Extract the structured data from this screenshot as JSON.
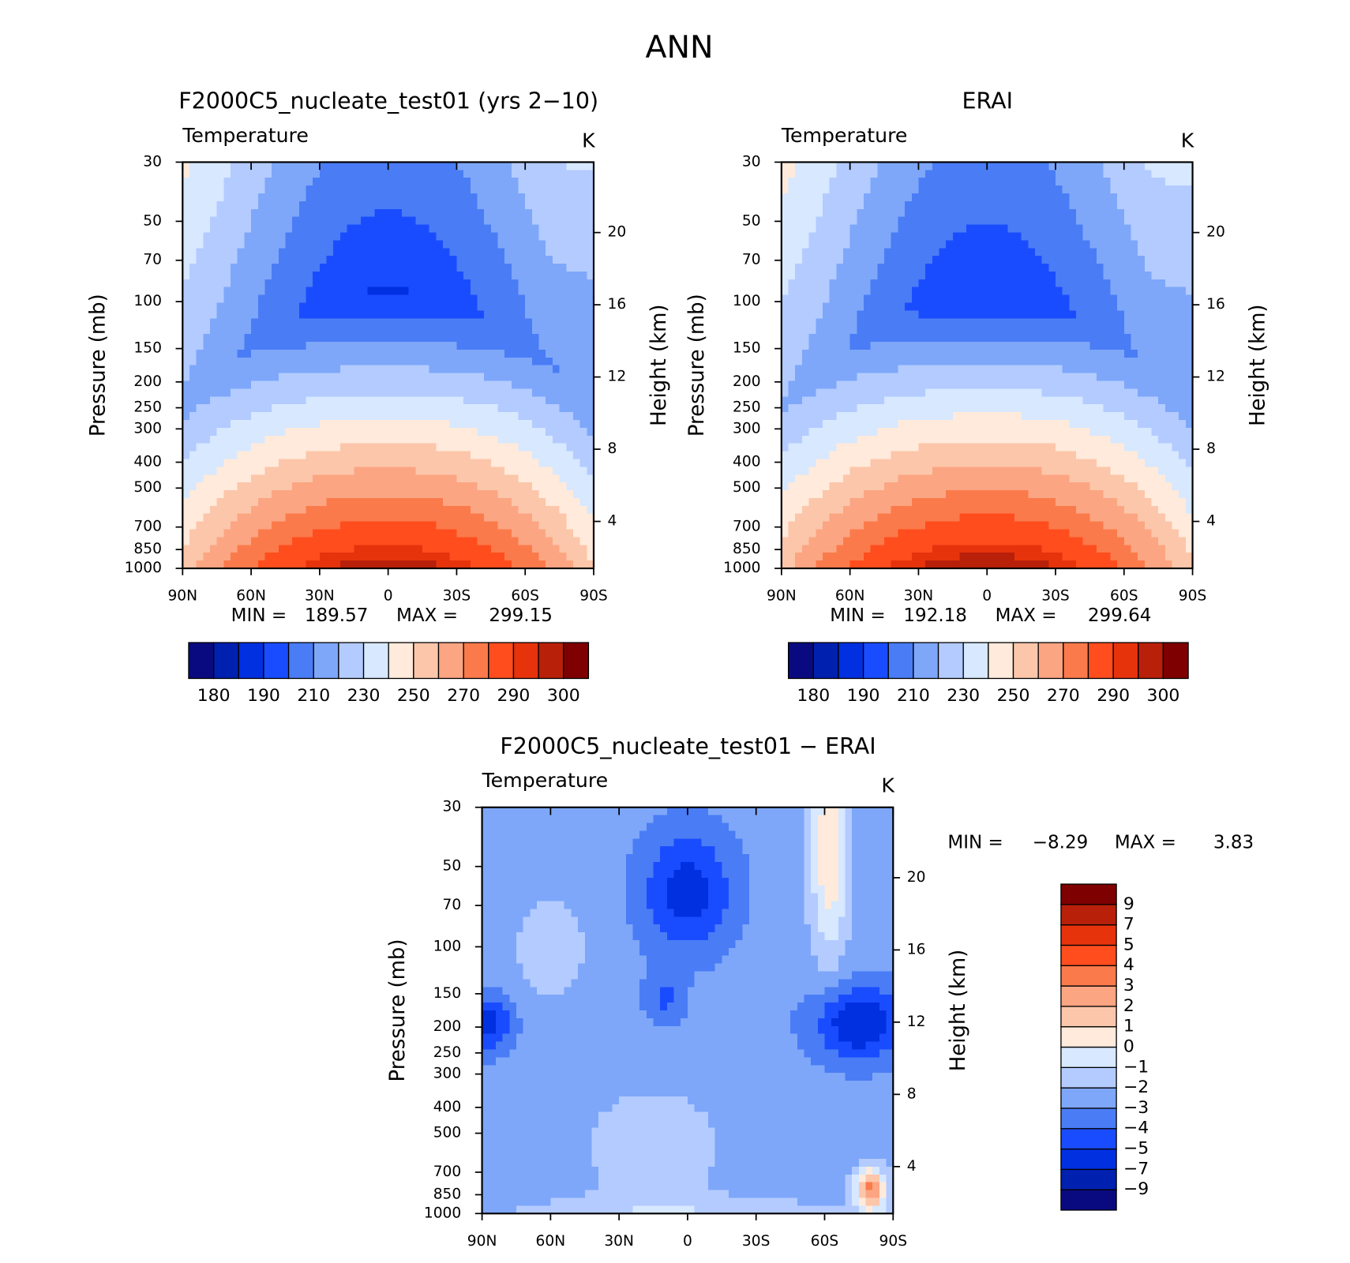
{
  "title": "ANN",
  "chart_data": [
    {
      "type": "contour",
      "title": "F2000C5_nucleate_test01 (yrs 2−10)",
      "variable": "Temperature",
      "units": "K",
      "ylabel": "Pressure (mb)",
      "y2label": "Height (km)",
      "min_label": "MIN =",
      "min": 189.57,
      "max_label": "MAX =",
      "max": 299.15,
      "xlim": [
        90,
        -90
      ],
      "xticks": [
        {
          "value": 90,
          "label": "90N"
        },
        {
          "value": 60,
          "label": "60N"
        },
        {
          "value": 30,
          "label": "30N"
        },
        0,
        {
          "value": -30,
          "label": "30S"
        },
        {
          "value": -60,
          "label": "60S"
        },
        {
          "value": -90,
          "label": "90S"
        }
      ],
      "ylim": [
        1000,
        30
      ],
      "log_y": true,
      "yticks": [
        30,
        50,
        70,
        100,
        150,
        200,
        250,
        300,
        400,
        500,
        700,
        850,
        1000
      ],
      "y2lim": [
        1.4,
        23.9
      ],
      "y2ticks": [
        4,
        8,
        12,
        16,
        20
      ],
      "colorbar": {
        "orientation": "horizontal",
        "levels": [
          180,
          185,
          190,
          200,
          210,
          220,
          230,
          240,
          250,
          260,
          270,
          280,
          290,
          295,
          300
        ],
        "colors": [
          "#0a0a80",
          "#0020b0",
          "#0030e0",
          "#1a4cff",
          "#4a7cf5",
          "#7ea7fa",
          "#b3cbff",
          "#d7e8ff",
          "#ffeadb",
          "#fcc6aa",
          "#fca582",
          "#fb7a4b",
          "#ff4d1e",
          "#e6330c",
          "#b8200a",
          "#7f0000"
        ]
      }
    },
    {
      "type": "contour",
      "title": "ERAI",
      "variable": "Temperature",
      "units": "K",
      "ylabel": "Pressure (mb)",
      "y2label": "Height (km)",
      "min_label": "MIN =",
      "min": 192.18,
      "max_label": "MAX =",
      "max": 299.64,
      "xlim": [
        90,
        -90
      ],
      "xticks": [
        {
          "value": 90,
          "label": "90N"
        },
        {
          "value": 60,
          "label": "60N"
        },
        {
          "value": 30,
          "label": "30N"
        },
        0,
        {
          "value": -30,
          "label": "30S"
        },
        {
          "value": -60,
          "label": "60S"
        },
        {
          "value": -90,
          "label": "90S"
        }
      ],
      "ylim": [
        1000,
        30
      ],
      "log_y": true,
      "yticks": [
        30,
        50,
        70,
        100,
        150,
        200,
        250,
        300,
        400,
        500,
        700,
        850,
        1000
      ],
      "y2lim": [
        1.4,
        23.9
      ],
      "y2ticks": [
        4,
        8,
        12,
        16,
        20
      ],
      "colorbar": {
        "orientation": "horizontal",
        "levels": [
          180,
          185,
          190,
          200,
          210,
          220,
          230,
          240,
          250,
          260,
          270,
          280,
          290,
          295,
          300
        ],
        "colors": [
          "#0a0a80",
          "#0020b0",
          "#0030e0",
          "#1a4cff",
          "#4a7cf5",
          "#7ea7fa",
          "#b3cbff",
          "#d7e8ff",
          "#ffeadb",
          "#fcc6aa",
          "#fca582",
          "#fb7a4b",
          "#ff4d1e",
          "#e6330c",
          "#b8200a",
          "#7f0000"
        ]
      }
    },
    {
      "type": "contour",
      "title": "F2000C5_nucleate_test01 − ERAI",
      "variable": "Temperature",
      "units": "K",
      "ylabel": "Pressure (mb)",
      "y2label": "Height (km)",
      "min_label": "MIN =",
      "min": {
        "value": -8.29,
        "label": "−8.29"
      },
      "max_label": "MAX =",
      "max": 3.83,
      "xlim": [
        90,
        -90
      ],
      "xticks": [
        {
          "value": 90,
          "label": "90N"
        },
        {
          "value": 60,
          "label": "60N"
        },
        {
          "value": 30,
          "label": "30N"
        },
        0,
        {
          "value": -30,
          "label": "30S"
        },
        {
          "value": -60,
          "label": "60S"
        },
        {
          "value": -90,
          "label": "90S"
        }
      ],
      "ylim": [
        1000,
        30
      ],
      "log_y": true,
      "yticks": [
        30,
        50,
        70,
        100,
        150,
        200,
        250,
        300,
        400,
        500,
        700,
        850,
        1000
      ],
      "y2lim": [
        1.4,
        23.9
      ],
      "y2ticks": [
        4,
        8,
        12,
        16,
        20
      ],
      "colorbar": {
        "orientation": "vertical",
        "levels": [
          {
            "value": -9,
            "label": "−9"
          },
          {
            "value": -7,
            "label": "−7"
          },
          {
            "value": -5,
            "label": "−5"
          },
          {
            "value": -4,
            "label": "−4"
          },
          {
            "value": -3,
            "label": "−3"
          },
          {
            "value": -2,
            "label": "−2"
          },
          {
            "value": -1,
            "label": "−1"
          },
          0,
          1,
          2,
          3,
          4,
          5,
          7,
          9
        ],
        "colors": [
          "#0a0a80",
          "#0020b0",
          "#0030e0",
          "#1a4cff",
          "#4a7cf5",
          "#7ea7fa",
          "#b3cbff",
          "#d7e8ff",
          "#ffeadb",
          "#fcc6aa",
          "#fca582",
          "#fb7a4b",
          "#ff4d1e",
          "#e6330c",
          "#b8200a",
          "#7f0000"
        ]
      }
    }
  ]
}
